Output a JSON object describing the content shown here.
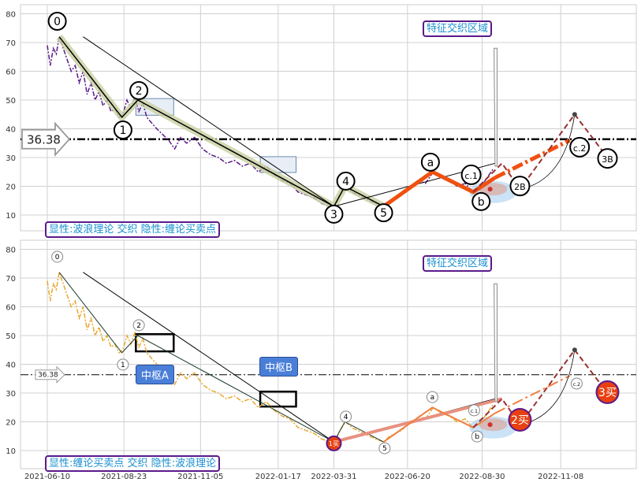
{
  "chart_data": {
    "type": "line",
    "x_ticks": [
      {
        "label": "2021-06-10",
        "day": 0
      },
      {
        "label": "2021-08-23",
        "day": 77
      },
      {
        "label": "2021-11-05",
        "day": 154
      },
      {
        "label": "2022-01-17",
        "day": 232
      },
      {
        "label": "2022-03-31",
        "day": 288
      },
      {
        "label": "2022-06-20",
        "day": 362
      },
      {
        "label": "2022-08-30",
        "day": 437
      },
      {
        "label": "2022-11-08",
        "day": 516
      }
    ],
    "y_ticks": [
      10,
      20,
      30,
      40,
      50,
      60,
      70,
      80
    ],
    "ylim": [
      5,
      82
    ],
    "reference_line": {
      "value": 36.38,
      "label": "36.38"
    },
    "price": [
      [
        0,
        69
      ],
      [
        3,
        62
      ],
      [
        6,
        68
      ],
      [
        9,
        66
      ],
      [
        12,
        72
      ],
      [
        16,
        68
      ],
      [
        20,
        64
      ],
      [
        24,
        60
      ],
      [
        28,
        62
      ],
      [
        32,
        56
      ],
      [
        36,
        60
      ],
      [
        40,
        52
      ],
      [
        44,
        56
      ],
      [
        48,
        50
      ],
      [
        52,
        53
      ],
      [
        56,
        48
      ],
      [
        60,
        50
      ],
      [
        64,
        46
      ],
      [
        68,
        47
      ],
      [
        72,
        44
      ],
      [
        76,
        45
      ],
      [
        80,
        50
      ],
      [
        84,
        47
      ],
      [
        88,
        51
      ],
      [
        92,
        46
      ],
      [
        96,
        49
      ],
      [
        100,
        44
      ],
      [
        105,
        42
      ],
      [
        110,
        40
      ],
      [
        116,
        38
      ],
      [
        122,
        36
      ],
      [
        128,
        33
      ],
      [
        134,
        37
      ],
      [
        140,
        35
      ],
      [
        148,
        37
      ],
      [
        156,
        33
      ],
      [
        164,
        31
      ],
      [
        172,
        30
      ],
      [
        180,
        28
      ],
      [
        188,
        29
      ],
      [
        196,
        27
      ],
      [
        204,
        28
      ],
      [
        212,
        25
      ],
      [
        220,
        27
      ],
      [
        228,
        24
      ],
      [
        236,
        22
      ],
      [
        244,
        21
      ],
      [
        252,
        18
      ],
      [
        260,
        17
      ],
      [
        268,
        16
      ],
      [
        276,
        14
      ],
      [
        284,
        13
      ],
      [
        289,
        13
      ],
      [
        294,
        17
      ],
      [
        300,
        20
      ],
      [
        306,
        18
      ],
      [
        312,
        17
      ],
      [
        318,
        16
      ],
      [
        324,
        15
      ],
      [
        330,
        14
      ],
      [
        338,
        13
      ],
      [
        344,
        15
      ],
      [
        350,
        16
      ],
      [
        356,
        17
      ],
      [
        362,
        19
      ],
      [
        368,
        20
      ],
      [
        374,
        22
      ],
      [
        380,
        21
      ],
      [
        388,
        25
      ],
      [
        396,
        23
      ],
      [
        404,
        22
      ],
      [
        412,
        20
      ],
      [
        420,
        21
      ],
      [
        428,
        18
      ],
      [
        436,
        20
      ],
      [
        444,
        24
      ],
      [
        448,
        26
      ]
    ],
    "wave": [
      [
        12,
        72
      ],
      [
        75,
        44
      ],
      [
        91,
        50
      ],
      [
        288,
        13
      ],
      [
        299,
        20
      ],
      [
        338,
        13
      ]
    ],
    "channel": [
      [
        36,
        72
      ],
      [
        288,
        13
      ],
      [
        450,
        28
      ]
    ],
    "abc": [
      [
        338,
        13
      ],
      [
        387,
        25
      ],
      [
        428,
        18
      ],
      [
        450,
        23
      ]
    ],
    "abc_projection": [
      [
        450,
        23
      ],
      [
        525,
        36
      ]
    ],
    "future": [
      [
        428,
        18
      ],
      [
        457,
        28
      ],
      [
        475,
        19
      ],
      [
        530,
        45
      ],
      [
        563,
        30
      ]
    ],
    "panels": [
      {
        "title": "显性:波浪理论 交织 隐性:缠论买卖点",
        "zone_label": "特征交织区域",
        "labels": [
          {
            "t": "0",
            "d": 10,
            "v": 77.4
          },
          {
            "t": "1",
            "d": 76,
            "v": 39.6
          },
          {
            "t": "2",
            "d": 92,
            "v": 53.3
          },
          {
            "t": "3",
            "d": 288,
            "v": 10.3
          },
          {
            "t": "4",
            "d": 300,
            "v": 21.8
          },
          {
            "t": "5",
            "d": 338,
            "v": 10.8
          },
          {
            "t": "a",
            "d": 385,
            "v": 28.4
          },
          {
            "t": "b",
            "d": 436,
            "v": 14.7
          },
          {
            "t": "c.1",
            "d": 426,
            "v": 24
          },
          {
            "t": "c.2",
            "d": 535,
            "v": 33.6
          },
          {
            "t": "2B",
            "d": 475,
            "v": 20.1
          },
          {
            "t": "3B",
            "d": 563,
            "v": 29.7
          }
        ],
        "boxes": [
          {
            "d": [
              89,
              127
            ],
            "v": [
              44.7,
              50.5
            ]
          },
          {
            "d": [
              214,
              250
            ],
            "v": [
              24.8,
              30.3
            ]
          }
        ]
      },
      {
        "title": "显性:缠论买卖点 交织 隐性:波浪理论",
        "zone_label": "特征交织区域",
        "labels": [
          {
            "t": "0",
            "d": 10,
            "v": 77.4
          },
          {
            "t": "1",
            "d": 76,
            "v": 39.9
          },
          {
            "t": "2",
            "d": 92,
            "v": 53.6
          },
          {
            "t": "4",
            "d": 300,
            "v": 21.8
          },
          {
            "t": "5",
            "d": 339,
            "v": 10.8
          },
          {
            "t": "a",
            "d": 387,
            "v": 28.6
          },
          {
            "t": "b",
            "d": 432,
            "v": 14.9
          },
          {
            "t": "c.1",
            "d": 429,
            "v": 24
          },
          {
            "t": "c.2",
            "d": 532,
            "v": 33.3
          }
        ],
        "boxes": [
          {
            "d": [
              89,
              127
            ],
            "v": [
              44.5,
              50.5
            ],
            "name": "中枢A"
          },
          {
            "d": [
              214,
              250
            ],
            "v": [
              25.3,
              30.5
            ],
            "name": "中枢B"
          }
        ],
        "buy_points": [
          {
            "t": "1买",
            "d": 288,
            "v": 12.5
          },
          {
            "t": "2买",
            "d": 475,
            "v": 20.7
          },
          {
            "t": "3买",
            "d": 563,
            "v": 30.3
          }
        ]
      }
    ]
  },
  "colors": {
    "price_top": "#5a1a8a",
    "price_bottom": "#e8a830",
    "abc": "#f05010",
    "future": "#9a3030",
    "buy": "#e84010"
  }
}
